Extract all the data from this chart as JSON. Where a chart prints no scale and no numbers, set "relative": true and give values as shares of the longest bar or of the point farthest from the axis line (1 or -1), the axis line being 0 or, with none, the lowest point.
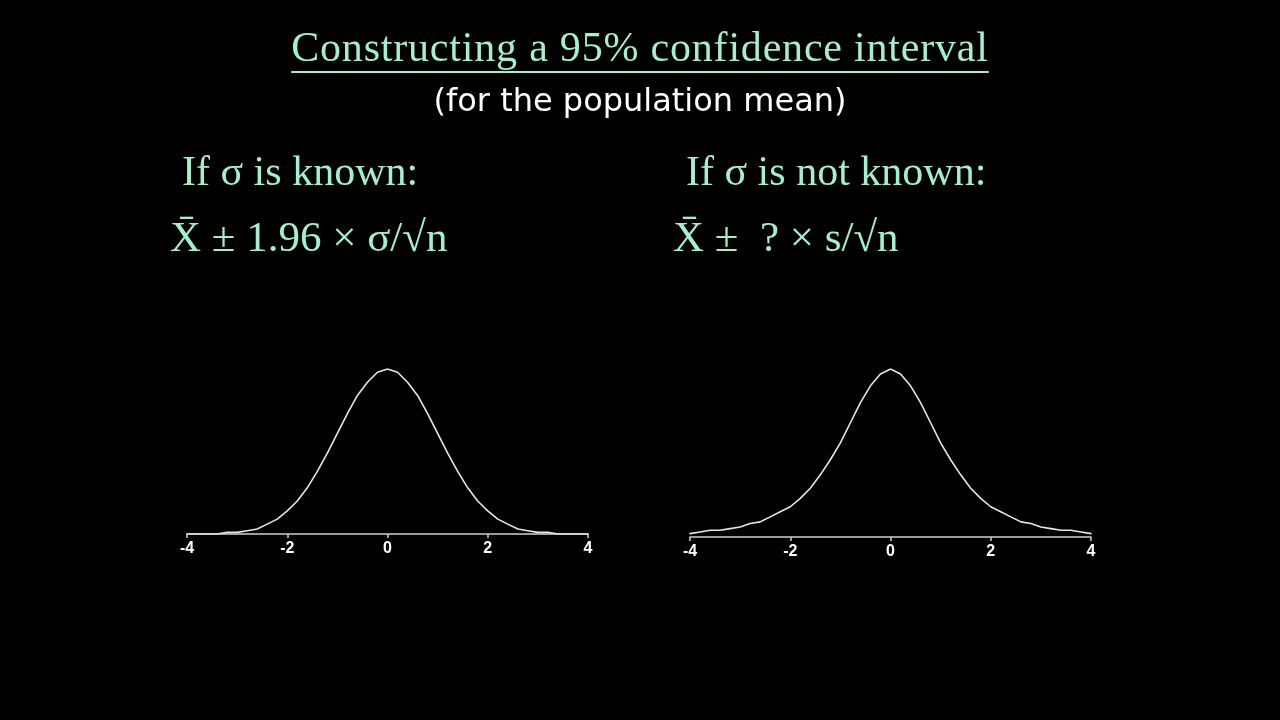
{
  "chart_data": [
    {
      "type": "other",
      "title": "Constructing a 95% confidence interval",
      "subtitle": "(for the population mean)"
    },
    {
      "type": "line",
      "title": "If σ is known:",
      "subtitle": "X̄ ± 1.96 × σ/√n",
      "relative": true,
      "color": "#e6e6e6",
      "line_style": "solid",
      "tick_labels": "x",
      "x": [
        -4,
        -3.8,
        -3.6,
        -3.4,
        -3.2,
        -3,
        -2.8,
        -2.6,
        -2.4,
        -2.2,
        -2,
        -1.8,
        -1.6,
        -1.4,
        -1.2,
        -1,
        -0.8,
        -0.6,
        -0.4,
        -0.2,
        0,
        0.2,
        0.4,
        0.6,
        0.8,
        1,
        1.2,
        1.4,
        1.6,
        1.8,
        2,
        2.2,
        2.4,
        2.6,
        2.8,
        3,
        3.2,
        3.4,
        3.6,
        3.8,
        4
      ],
      "values": [
        0,
        0,
        0,
        0,
        0.01,
        0.01,
        0.02,
        0.03,
        0.06,
        0.09,
        0.14,
        0.2,
        0.28,
        0.38,
        0.49,
        0.61,
        0.73,
        0.84,
        0.92,
        0.98,
        1,
        0.98,
        0.92,
        0.84,
        0.73,
        0.61,
        0.49,
        0.38,
        0.28,
        0.2,
        0.14,
        0.09,
        0.06,
        0.03,
        0.02,
        0.01,
        0.01,
        0,
        0,
        0,
        0
      ],
      "xlim": [
        -4,
        4
      ],
      "xticks": [
        -4,
        -2,
        0,
        2,
        4
      ]
    },
    {
      "type": "line",
      "title": "If σ is not known:",
      "subtitle": "X̄ ±  ? × s/√n",
      "relative": true,
      "color": "#e6e6e6",
      "line_style": "solid",
      "tick_labels": "x",
      "x": [
        -4,
        -3.8,
        -3.6,
        -3.4,
        -3.2,
        -3,
        -2.8,
        -2.6,
        -2.4,
        -2.2,
        -2,
        -1.8,
        -1.6,
        -1.4,
        -1.2,
        -1,
        -0.8,
        -0.6,
        -0.4,
        -0.2,
        0,
        0.2,
        0.4,
        0.6,
        0.8,
        1,
        1.2,
        1.4,
        1.6,
        1.8,
        2,
        2.2,
        2.4,
        2.6,
        2.8,
        3,
        3.2,
        3.4,
        3.6,
        3.8,
        4
      ],
      "values": [
        0.02,
        0.03,
        0.04,
        0.04,
        0.05,
        0.06,
        0.08,
        0.09,
        0.12,
        0.15,
        0.18,
        0.23,
        0.29,
        0.37,
        0.46,
        0.56,
        0.68,
        0.8,
        0.9,
        0.97,
        1,
        0.97,
        0.9,
        0.8,
        0.68,
        0.56,
        0.46,
        0.37,
        0.29,
        0.23,
        0.18,
        0.15,
        0.12,
        0.09,
        0.08,
        0.06,
        0.05,
        0.04,
        0.04,
        0.03,
        0.02
      ],
      "xlim": [
        -4,
        4
      ],
      "xticks": [
        -4,
        -2,
        0,
        2,
        4
      ]
    }
  ]
}
